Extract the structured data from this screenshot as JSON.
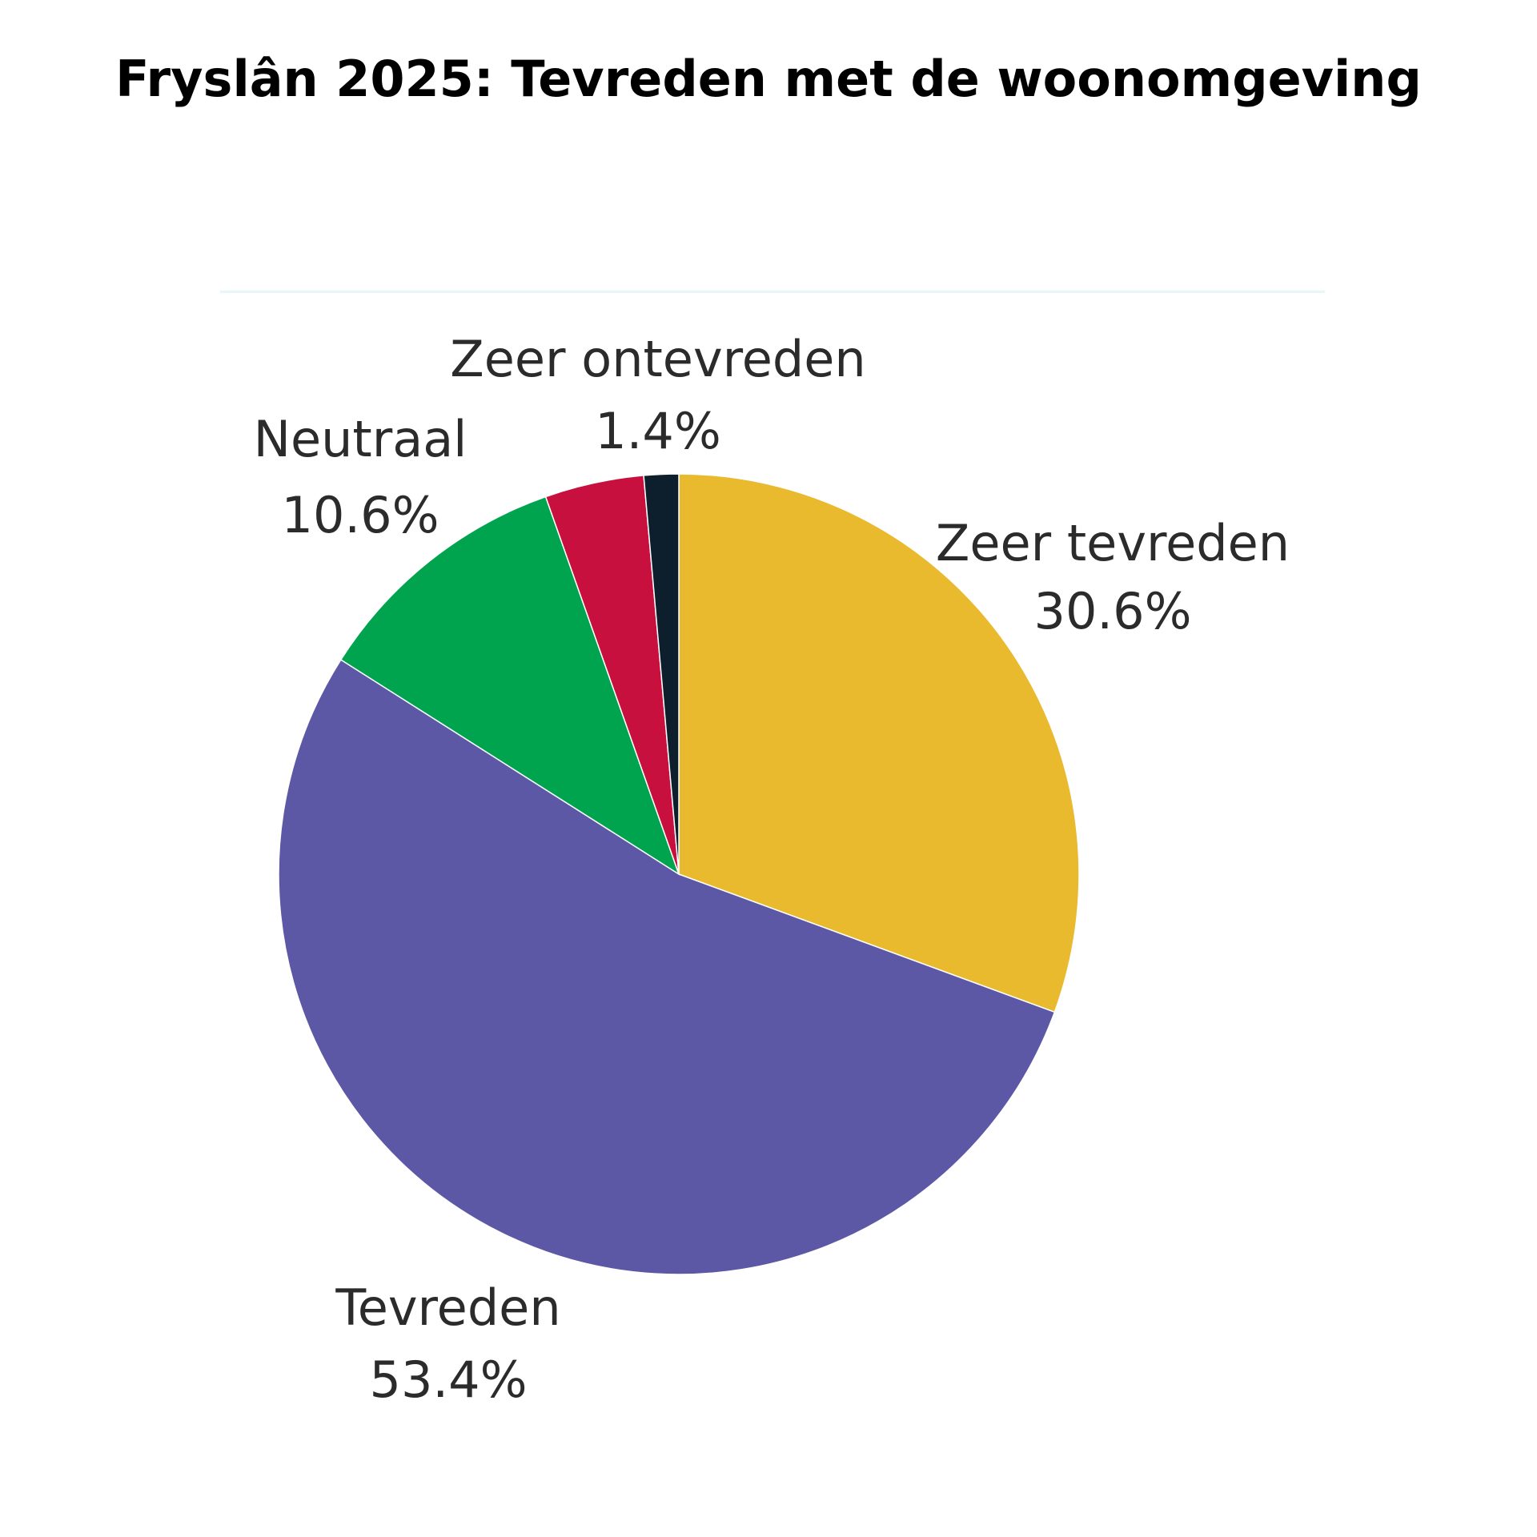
{
  "chart_data": {
    "type": "pie",
    "title": "Fryslân 2025: Tevreden met de woonomgeving",
    "slices": [
      {
        "label": "Zeer tevreden",
        "value_label": "30.6%",
        "value": 30.6,
        "color": "#E9B92E"
      },
      {
        "label": "Tevreden",
        "value_label": "53.4%",
        "value": 53.4,
        "color": "#5C58A5"
      },
      {
        "label": "Neutraal",
        "value_label": "10.6%",
        "value": 10.6,
        "color": "#00A34E"
      },
      {
        "label": "",
        "value_label": "",
        "value": 4.0,
        "color": "#C8103F"
      },
      {
        "label": "Zeer ontevreden",
        "value_label": "1.4%",
        "value": 1.4,
        "color": "#0D1F2D"
      }
    ],
    "start": "12 o'clock",
    "direction": "clockwise"
  }
}
